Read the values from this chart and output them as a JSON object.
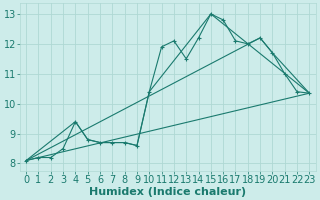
{
  "xlabel": "Humidex (Indice chaleur)",
  "background_color": "#cdecea",
  "line_color": "#1a7a6e",
  "grid_color": "#afd8d4",
  "xlim": [
    -0.5,
    23.5
  ],
  "ylim": [
    7.75,
    13.35
  ],
  "xticks": [
    0,
    1,
    2,
    3,
    4,
    5,
    6,
    7,
    8,
    9,
    10,
    11,
    12,
    13,
    14,
    15,
    16,
    17,
    18,
    19,
    20,
    21,
    22,
    23
  ],
  "yticks": [
    8,
    9,
    10,
    11,
    12,
    13
  ],
  "series1_x": [
    0,
    1,
    2,
    3,
    4,
    5,
    6,
    7,
    8,
    9,
    10,
    11,
    12,
    13,
    14,
    15,
    16,
    17,
    18,
    19,
    20,
    21,
    22,
    23
  ],
  "series1_y": [
    8.1,
    8.2,
    8.2,
    8.5,
    9.4,
    8.8,
    8.7,
    8.7,
    8.7,
    8.6,
    10.4,
    11.9,
    12.1,
    11.5,
    12.2,
    13.0,
    12.8,
    12.1,
    12.0,
    12.2,
    11.7,
    11.0,
    10.4,
    10.35
  ],
  "line2_x": [
    0,
    4,
    5,
    6,
    7,
    8,
    9,
    10,
    15,
    23
  ],
  "line2_y": [
    8.1,
    9.4,
    8.8,
    8.7,
    8.7,
    8.7,
    8.6,
    10.4,
    13.0,
    10.35
  ],
  "line3_x": [
    0,
    23
  ],
  "line3_y": [
    8.1,
    10.35
  ],
  "line4_x": [
    0,
    19,
    20,
    23
  ],
  "line4_y": [
    8.1,
    12.2,
    11.7,
    10.35
  ],
  "tick_fontsize": 7,
  "label_fontsize": 8
}
